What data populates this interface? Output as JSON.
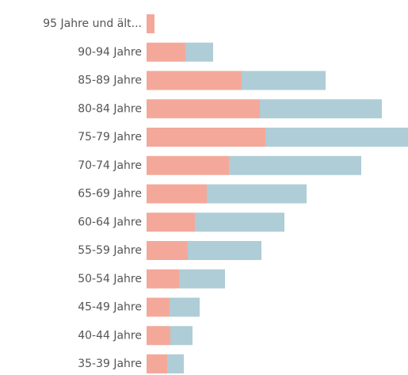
{
  "chart_data": {
    "type": "stacked-barh",
    "categories": [
      "95 Jahre und ält...",
      "90-94 Jahre",
      "85-89 Jahre",
      "80-84 Jahre",
      "75-79 Jahre",
      "70-74 Jahre",
      "65-69 Jahre",
      "60-64 Jahre",
      "55-59 Jahre",
      "50-54 Jahre",
      "45-49 Jahre",
      "40-44 Jahre",
      "35-39 Jahre"
    ],
    "series": [
      {
        "color": "#f4a89a",
        "values": [
          10,
          49,
          120,
          143,
          150,
          104,
          76,
          61,
          52,
          41,
          29,
          30,
          26
        ]
      },
      {
        "color": "#aecdd7",
        "values": [
          0,
          35,
          106,
          154,
          180,
          167,
          126,
          113,
          93,
          58,
          38,
          28,
          21
        ]
      }
    ],
    "xlim": [
      0,
      330
    ]
  }
}
